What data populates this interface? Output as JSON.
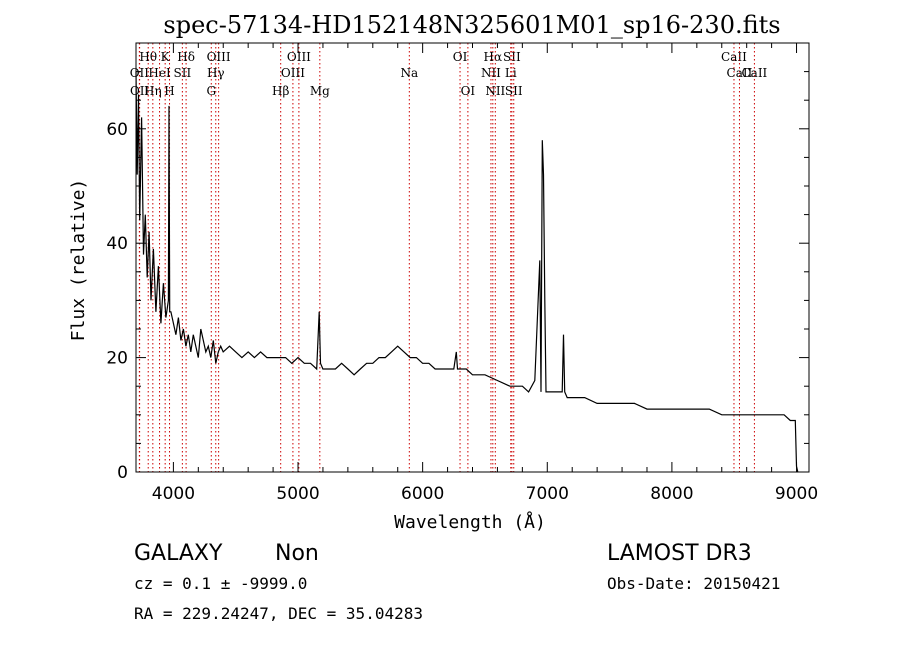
{
  "chart_data": {
    "type": "line",
    "title": "spec-57134-HD152148N325601M01_sp16-230.fits",
    "xlabel": "Wavelength (Å)",
    "ylabel": "Flux (relative)",
    "xlim": [
      3700,
      9100
    ],
    "ylim": [
      0,
      75
    ],
    "xticks": [
      4000,
      5000,
      6000,
      7000,
      8000,
      9000
    ],
    "yticks": [
      0,
      20,
      40,
      60
    ],
    "grid": false,
    "line_color": "#000000",
    "marker_color": "#cc0000",
    "series": [
      {
        "x": [
          3700,
          3710,
          3720,
          3730,
          3745,
          3760,
          3775,
          3790,
          3805,
          3820,
          3840,
          3860,
          3880,
          3900,
          3920,
          3940,
          3960,
          3965,
          3970,
          3980,
          4000,
          4020,
          4040,
          4060,
          4080,
          4100,
          4120,
          4140,
          4160,
          4180,
          4200,
          4220,
          4240,
          4260,
          4280,
          4300,
          4320,
          4340,
          4360,
          4380,
          4400,
          4450,
          4500,
          4550,
          4600,
          4650,
          4700,
          4750,
          4800,
          4850,
          4900,
          4950,
          5000,
          5050,
          5100,
          5150,
          5170,
          5180,
          5200,
          5250,
          5300,
          5350,
          5400,
          5450,
          5500,
          5550,
          5600,
          5650,
          5700,
          5750,
          5800,
          5850,
          5900,
          5950,
          6000,
          6050,
          6100,
          6150,
          6200,
          6250,
          6270,
          6280,
          6300,
          6350,
          6400,
          6500,
          6600,
          6700,
          6800,
          6850,
          6900,
          6940,
          6950,
          6960,
          6970,
          6980,
          6990,
          7000,
          7050,
          7100,
          7120,
          7130,
          7140,
          7160,
          7200,
          7300,
          7400,
          7500,
          7600,
          7700,
          7800,
          7900,
          8000,
          8100,
          8200,
          8300,
          8400,
          8500,
          8600,
          8700,
          8800,
          8900,
          8950,
          8990,
          9000,
          9010
        ],
        "y": [
          70,
          52,
          66,
          44,
          62,
          38,
          45,
          34,
          42,
          30,
          39,
          28,
          36,
          26,
          33,
          27,
          30,
          64,
          28,
          28,
          26,
          24,
          27,
          23,
          25,
          22,
          24,
          21,
          24,
          22,
          20,
          25,
          23,
          21,
          22,
          20,
          23,
          19,
          21,
          22,
          21,
          22,
          21,
          20,
          21,
          20,
          21,
          20,
          20,
          20,
          20,
          19,
          20,
          19,
          19,
          18,
          28,
          19,
          18,
          18,
          18,
          19,
          18,
          17,
          18,
          19,
          19,
          20,
          20,
          21,
          22,
          21,
          20,
          20,
          19,
          19,
          18,
          18,
          18,
          18,
          21,
          18,
          18,
          18,
          17,
          17,
          16,
          15,
          15,
          14,
          16,
          37,
          14,
          58,
          52,
          30,
          14,
          14,
          14,
          14,
          14,
          24,
          14,
          13,
          13,
          13,
          12,
          12,
          12,
          12,
          11,
          11,
          11,
          11,
          11,
          11,
          10,
          10,
          10,
          10,
          10,
          10,
          9,
          9,
          1,
          0
        ]
      }
    ],
    "line_markers": [
      {
        "label": "OII",
        "x": 3727,
        "row": 2
      },
      {
        "label": "OII",
        "x": 3729,
        "row": 3
      },
      {
        "label": "Hθ",
        "x": 3798,
        "row": 1
      },
      {
        "label": "Hη",
        "x": 3835,
        "row": 3
      },
      {
        "label": "HeI",
        "x": 3889,
        "row": 2
      },
      {
        "label": "K",
        "x": 3934,
        "row": 1
      },
      {
        "label": "H",
        "x": 3969,
        "row": 3
      },
      {
        "label": "Hδ",
        "x": 4102,
        "row": 1
      },
      {
        "label": "SII",
        "x": 4072,
        "row": 2
      },
      {
        "label": "Hγ",
        "x": 4340,
        "row": 2
      },
      {
        "label": "G",
        "x": 4304,
        "row": 3
      },
      {
        "label": "OIII",
        "x": 4363,
        "row": 1
      },
      {
        "label": "Hβ",
        "x": 4861,
        "row": 3
      },
      {
        "label": "OIII",
        "x": 4959,
        "row": 2
      },
      {
        "label": "OIII",
        "x": 5007,
        "row": 1
      },
      {
        "label": "Mg",
        "x": 5175,
        "row": 3
      },
      {
        "label": "Na",
        "x": 5893,
        "row": 2
      },
      {
        "label": "OI",
        "x": 6300,
        "row": 1
      },
      {
        "label": "OI",
        "x": 6363,
        "row": 3
      },
      {
        "label": "NII",
        "x": 6548,
        "row": 2
      },
      {
        "label": "Hα",
        "x": 6563,
        "row": 1
      },
      {
        "label": "NII",
        "x": 6583,
        "row": 3
      },
      {
        "label": "Li",
        "x": 6707,
        "row": 2
      },
      {
        "label": "SII",
        "x": 6716,
        "row": 1
      },
      {
        "label": "SII",
        "x": 6731,
        "row": 3
      },
      {
        "label": "CaII",
        "x": 8498,
        "row": 1
      },
      {
        "label": "CaII",
        "x": 8542,
        "row": 2
      },
      {
        "label": "CaII",
        "x": 8662,
        "row": 2
      }
    ]
  },
  "info": {
    "class": "GALAXY",
    "subclass": "Non",
    "survey": "LAMOST DR3",
    "cz": "cz = 0.1 ± -9999.0",
    "obs_date": "Obs-Date: 20150421",
    "coords": "RA = 229.24247, DEC =  35.04283"
  }
}
